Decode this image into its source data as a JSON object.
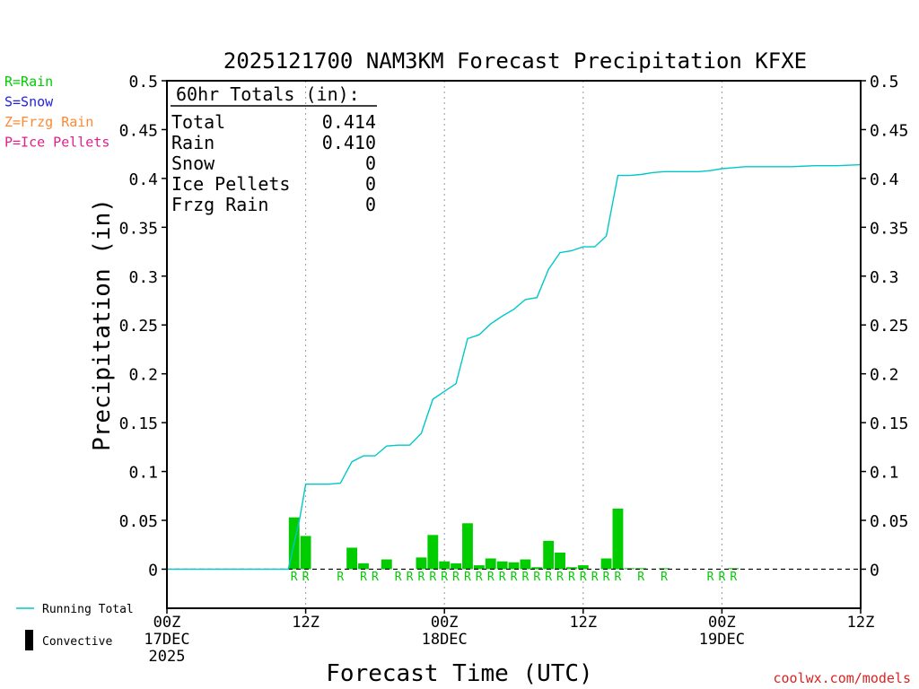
{
  "chart_data": {
    "type": "bar",
    "title": "2025121700 NAM3KM Forecast Precipitation KFXE",
    "xlabel": "Forecast Time (UTC)",
    "ylabel": "Precipitation (in)",
    "ylim": [
      -0.04,
      0.5
    ],
    "xlim_hours": [
      0,
      60
    ],
    "y_ticks": [
      0,
      0.05,
      0.1,
      0.15,
      0.2,
      0.25,
      0.3,
      0.35,
      0.4,
      0.45,
      0.5
    ],
    "y_tick_labels": [
      "0",
      "0.05",
      "0.1",
      "0.15",
      "0.2",
      "0.25",
      "0.3",
      "0.35",
      "0.4",
      "0.45",
      "0.5"
    ],
    "x_ticks": [
      {
        "hour": 0,
        "lines": [
          "00Z",
          "17DEC",
          "2025"
        ]
      },
      {
        "hour": 12,
        "lines": [
          "12Z"
        ]
      },
      {
        "hour": 24,
        "lines": [
          "00Z",
          "18DEC"
        ]
      },
      {
        "hour": 36,
        "lines": [
          "12Z"
        ]
      },
      {
        "hour": 48,
        "lines": [
          "00Z",
          "19DEC"
        ]
      },
      {
        "hour": 60,
        "lines": [
          "12Z"
        ]
      }
    ],
    "gridlines_hours": [
      12,
      24,
      36,
      48
    ],
    "bars": {
      "name": "Hourly Precipitation",
      "color": "#00cc00",
      "hours": [
        11,
        12,
        13,
        15,
        16,
        17,
        18,
        19,
        20,
        21,
        22,
        23,
        24,
        25,
        26,
        27,
        28,
        29,
        30,
        31,
        32,
        33,
        34,
        35,
        36,
        37,
        38,
        39,
        40,
        41,
        43,
        46,
        49,
        50
      ],
      "values": [
        0.053,
        0.034,
        0.0,
        0.0,
        0.022,
        0.006,
        0.0,
        0.01,
        0.0,
        0.0,
        0.012,
        0.035,
        0.008,
        0.006,
        0.047,
        0.004,
        0.011,
        0.008,
        0.007,
        0.01,
        0.002,
        0.029,
        0.017,
        0.002,
        0.004,
        0.0,
        0.011,
        0.062,
        0.001,
        0.001,
        0.001,
        0.0,
        0.001,
        0.0
      ]
    },
    "running_total": {
      "name": "Running Total",
      "color": "#00c8c8",
      "hours": [
        0,
        9.5,
        10.5,
        11.5,
        12.0,
        13,
        14,
        15,
        16,
        17,
        18,
        19,
        20,
        21,
        22,
        23,
        24,
        25,
        26,
        27,
        28,
        29,
        30,
        31,
        32,
        33,
        34,
        35,
        36,
        37,
        38,
        39,
        40,
        41,
        42,
        43,
        44,
        45,
        46,
        47,
        48,
        49,
        50,
        52,
        54,
        56,
        58,
        60
      ],
      "values": [
        0,
        0,
        0,
        0.053,
        0.087,
        0.087,
        0.087,
        0.088,
        0.11,
        0.116,
        0.116,
        0.126,
        0.127,
        0.127,
        0.139,
        0.174,
        0.182,
        0.19,
        0.236,
        0.24,
        0.251,
        0.259,
        0.266,
        0.276,
        0.278,
        0.307,
        0.324,
        0.326,
        0.33,
        0.33,
        0.341,
        0.403,
        0.403,
        0.404,
        0.406,
        0.407,
        0.407,
        0.407,
        0.407,
        0.408,
        0.41,
        0.411,
        0.412,
        0.412,
        0.412,
        0.413,
        0.413,
        0.414
      ]
    },
    "precip_type_labels": {
      "letter": "R",
      "hours": [
        11,
        12,
        15,
        17,
        18,
        20,
        21,
        22,
        23,
        24,
        25,
        26,
        27,
        28,
        29,
        30,
        31,
        32,
        33,
        34,
        35,
        36,
        37,
        38,
        39,
        41,
        43,
        47,
        48,
        49
      ],
      "color": "#00cc00"
    },
    "totals_box": {
      "heading": "60hr Totals (in):",
      "rows": [
        {
          "label": "Total",
          "value": "0.414"
        },
        {
          "label": "Rain",
          "value": "0.410"
        },
        {
          "label": "Snow",
          "value": "0"
        },
        {
          "label": "Ice Pellets",
          "value": "0"
        },
        {
          "label": "Frzg Rain",
          "value": "0"
        }
      ]
    },
    "type_legend": [
      {
        "text": "R=Rain",
        "color": "#00cc00"
      },
      {
        "text": "S=Snow",
        "color": "#2222dd"
      },
      {
        "text": "Z=Frzg Rain",
        "color": "#ff8833"
      },
      {
        "text": "P=Ice Pellets",
        "color": "#e0208a"
      }
    ],
    "series_legend": [
      {
        "text": "Running Total",
        "symbol": "line",
        "color": "#00c8c8"
      },
      {
        "text": "Convective",
        "symbol": "bar",
        "color": "#000000"
      }
    ],
    "credit": "coolwx.com/models"
  }
}
